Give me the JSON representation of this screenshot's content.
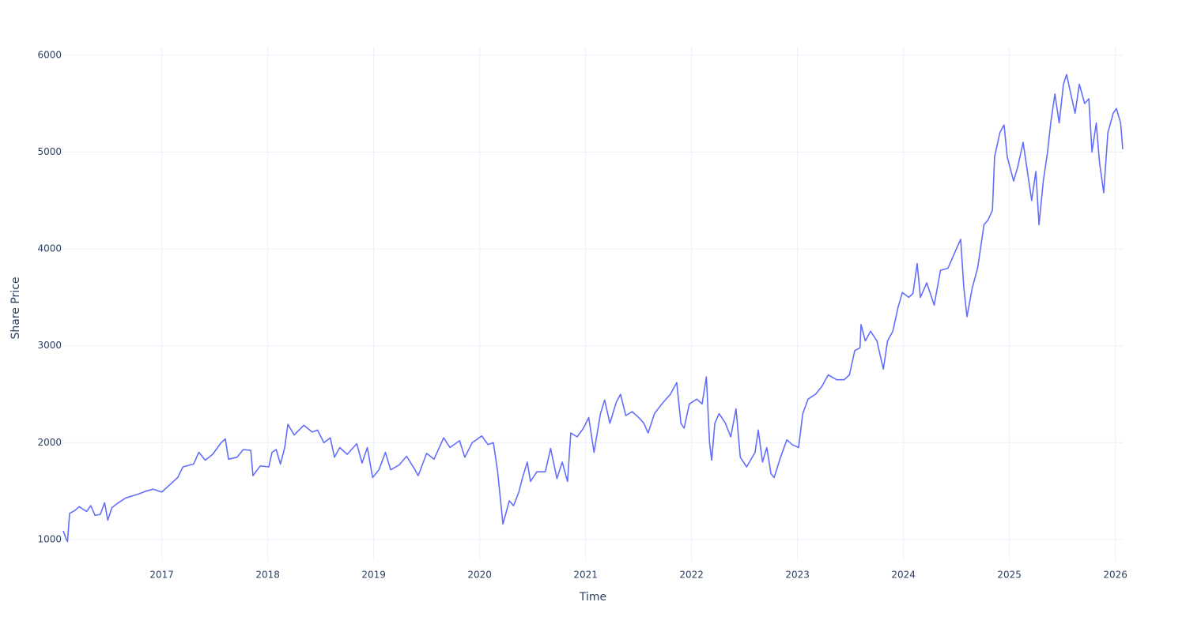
{
  "chart_data": {
    "type": "line",
    "x_label": "Time",
    "y_label": "Share Price",
    "color": "#636efa",
    "grid": true,
    "xlim": [
      2016.07,
      2026.07
    ],
    "xticks": [
      2017,
      2018,
      2019,
      2020,
      2021,
      2022,
      2023,
      2024,
      2025,
      2026
    ],
    "ylim": [
      780,
      6080
    ],
    "yticks": [
      1000,
      2000,
      3000,
      4000,
      5000,
      6000
    ],
    "x": [
      2016.07,
      2016.1,
      2016.11,
      2016.13,
      2016.18,
      2016.22,
      2016.29,
      2016.33,
      2016.37,
      2016.42,
      2016.46,
      2016.49,
      2016.53,
      2016.59,
      2016.66,
      2016.78,
      2016.85,
      2016.92,
      2017.0,
      2017.07,
      2017.15,
      2017.2,
      2017.3,
      2017.35,
      2017.41,
      2017.48,
      2017.56,
      2017.6,
      2017.63,
      2017.71,
      2017.77,
      2017.84,
      2017.86,
      2017.93,
      2018.01,
      2018.04,
      2018.08,
      2018.12,
      2018.16,
      2018.19,
      2018.25,
      2018.34,
      2018.42,
      2018.47,
      2018.53,
      2018.59,
      2018.63,
      2018.68,
      2018.75,
      2018.84,
      2018.89,
      2018.94,
      2018.99,
      2019.05,
      2019.11,
      2019.16,
      2019.24,
      2019.31,
      2019.39,
      2019.42,
      2019.5,
      2019.57,
      2019.66,
      2019.72,
      2019.81,
      2019.86,
      2019.93,
      2020.02,
      2020.08,
      2020.13,
      2020.17,
      2020.22,
      2020.28,
      2020.32,
      2020.37,
      2020.41,
      2020.45,
      2020.48,
      2020.54,
      2020.62,
      2020.67,
      2020.73,
      2020.78,
      2020.83,
      2020.86,
      2020.92,
      2020.98,
      2021.03,
      2021.08,
      2021.14,
      2021.18,
      2021.23,
      2021.29,
      2021.33,
      2021.38,
      2021.44,
      2021.51,
      2021.55,
      2021.59,
      2021.65,
      2021.72,
      2021.8,
      2021.86,
      2021.9,
      2021.93,
      2021.98,
      2022.05,
      2022.1,
      2022.14,
      2022.17,
      2022.19,
      2022.22,
      2022.26,
      2022.32,
      2022.37,
      2022.42,
      2022.46,
      2022.52,
      2022.6,
      2022.63,
      2022.67,
      2022.71,
      2022.75,
      2022.78,
      2022.84,
      2022.9,
      2022.95,
      2023.01,
      2023.05,
      2023.1,
      2023.17,
      2023.23,
      2023.29,
      2023.37,
      2023.44,
      2023.49,
      2023.54,
      2023.59,
      2023.6,
      2023.64,
      2023.69,
      2023.75,
      2023.81,
      2023.85,
      2023.9,
      2023.95,
      2023.99,
      2024.05,
      2024.09,
      2024.13,
      2024.16,
      2024.22,
      2024.29,
      2024.35,
      2024.42,
      2024.48,
      2024.54,
      2024.57,
      2024.6,
      2024.65,
      2024.7,
      2024.76,
      2024.8,
      2024.84,
      2024.86,
      2024.91,
      2024.95,
      2024.98,
      2025.04,
      2025.08,
      2025.13,
      2025.17,
      2025.21,
      2025.25,
      2025.28,
      2025.32,
      2025.36,
      2025.39,
      2025.43,
      2025.47,
      2025.51,
      2025.54,
      2025.58,
      2025.62,
      2025.66,
      2025.71,
      2025.75,
      2025.78,
      2025.82,
      2025.85,
      2025.89,
      2025.93,
      2025.98,
      2026.01,
      2026.05,
      2026.07
    ],
    "values": [
      1090,
      1000,
      980,
      1270,
      1300,
      1340,
      1290,
      1350,
      1250,
      1260,
      1380,
      1200,
      1330,
      1380,
      1430,
      1470,
      1500,
      1520,
      1490,
      1560,
      1640,
      1750,
      1780,
      1900,
      1820,
      1880,
      2000,
      2040,
      1830,
      1850,
      1930,
      1920,
      1660,
      1760,
      1750,
      1900,
      1930,
      1780,
      1950,
      2190,
      2080,
      2180,
      2110,
      2130,
      2000,
      2050,
      1850,
      1950,
      1880,
      1990,
      1790,
      1950,
      1640,
      1720,
      1900,
      1720,
      1770,
      1860,
      1720,
      1660,
      1890,
      1830,
      2050,
      1950,
      2020,
      1850,
      2000,
      2070,
      1980,
      2000,
      1700,
      1160,
      1400,
      1350,
      1490,
      1660,
      1800,
      1600,
      1700,
      1700,
      1940,
      1630,
      1800,
      1600,
      2100,
      2060,
      2150,
      2260,
      1900,
      2300,
      2440,
      2200,
      2420,
      2500,
      2280,
      2320,
      2250,
      2200,
      2100,
      2300,
      2400,
      2500,
      2620,
      2200,
      2150,
      2400,
      2450,
      2400,
      2680,
      2000,
      1820,
      2200,
      2300,
      2200,
      2060,
      2350,
      1850,
      1750,
      1900,
      2130,
      1800,
      1950,
      1680,
      1640,
      1850,
      2030,
      1980,
      1950,
      2300,
      2450,
      2500,
      2580,
      2700,
      2650,
      2650,
      2700,
      2950,
      2980,
      3220,
      3050,
      3150,
      3050,
      2760,
      3050,
      3150,
      3400,
      3550,
      3500,
      3540,
      3850,
      3500,
      3650,
      3420,
      3780,
      3800,
      3950,
      4100,
      3600,
      3300,
      3600,
      3800,
      4250,
      4300,
      4400,
      4950,
      5200,
      5280,
      4950,
      4700,
      4850,
      5100,
      4800,
      4500,
      4800,
      4250,
      4700,
      5000,
      5300,
      5600,
      5300,
      5700,
      5800,
      5600,
      5400,
      5700,
      5500,
      5550,
      5000,
      5300,
      4900,
      4580,
      5200,
      5400,
      5450,
      5300,
      5030
    ]
  }
}
